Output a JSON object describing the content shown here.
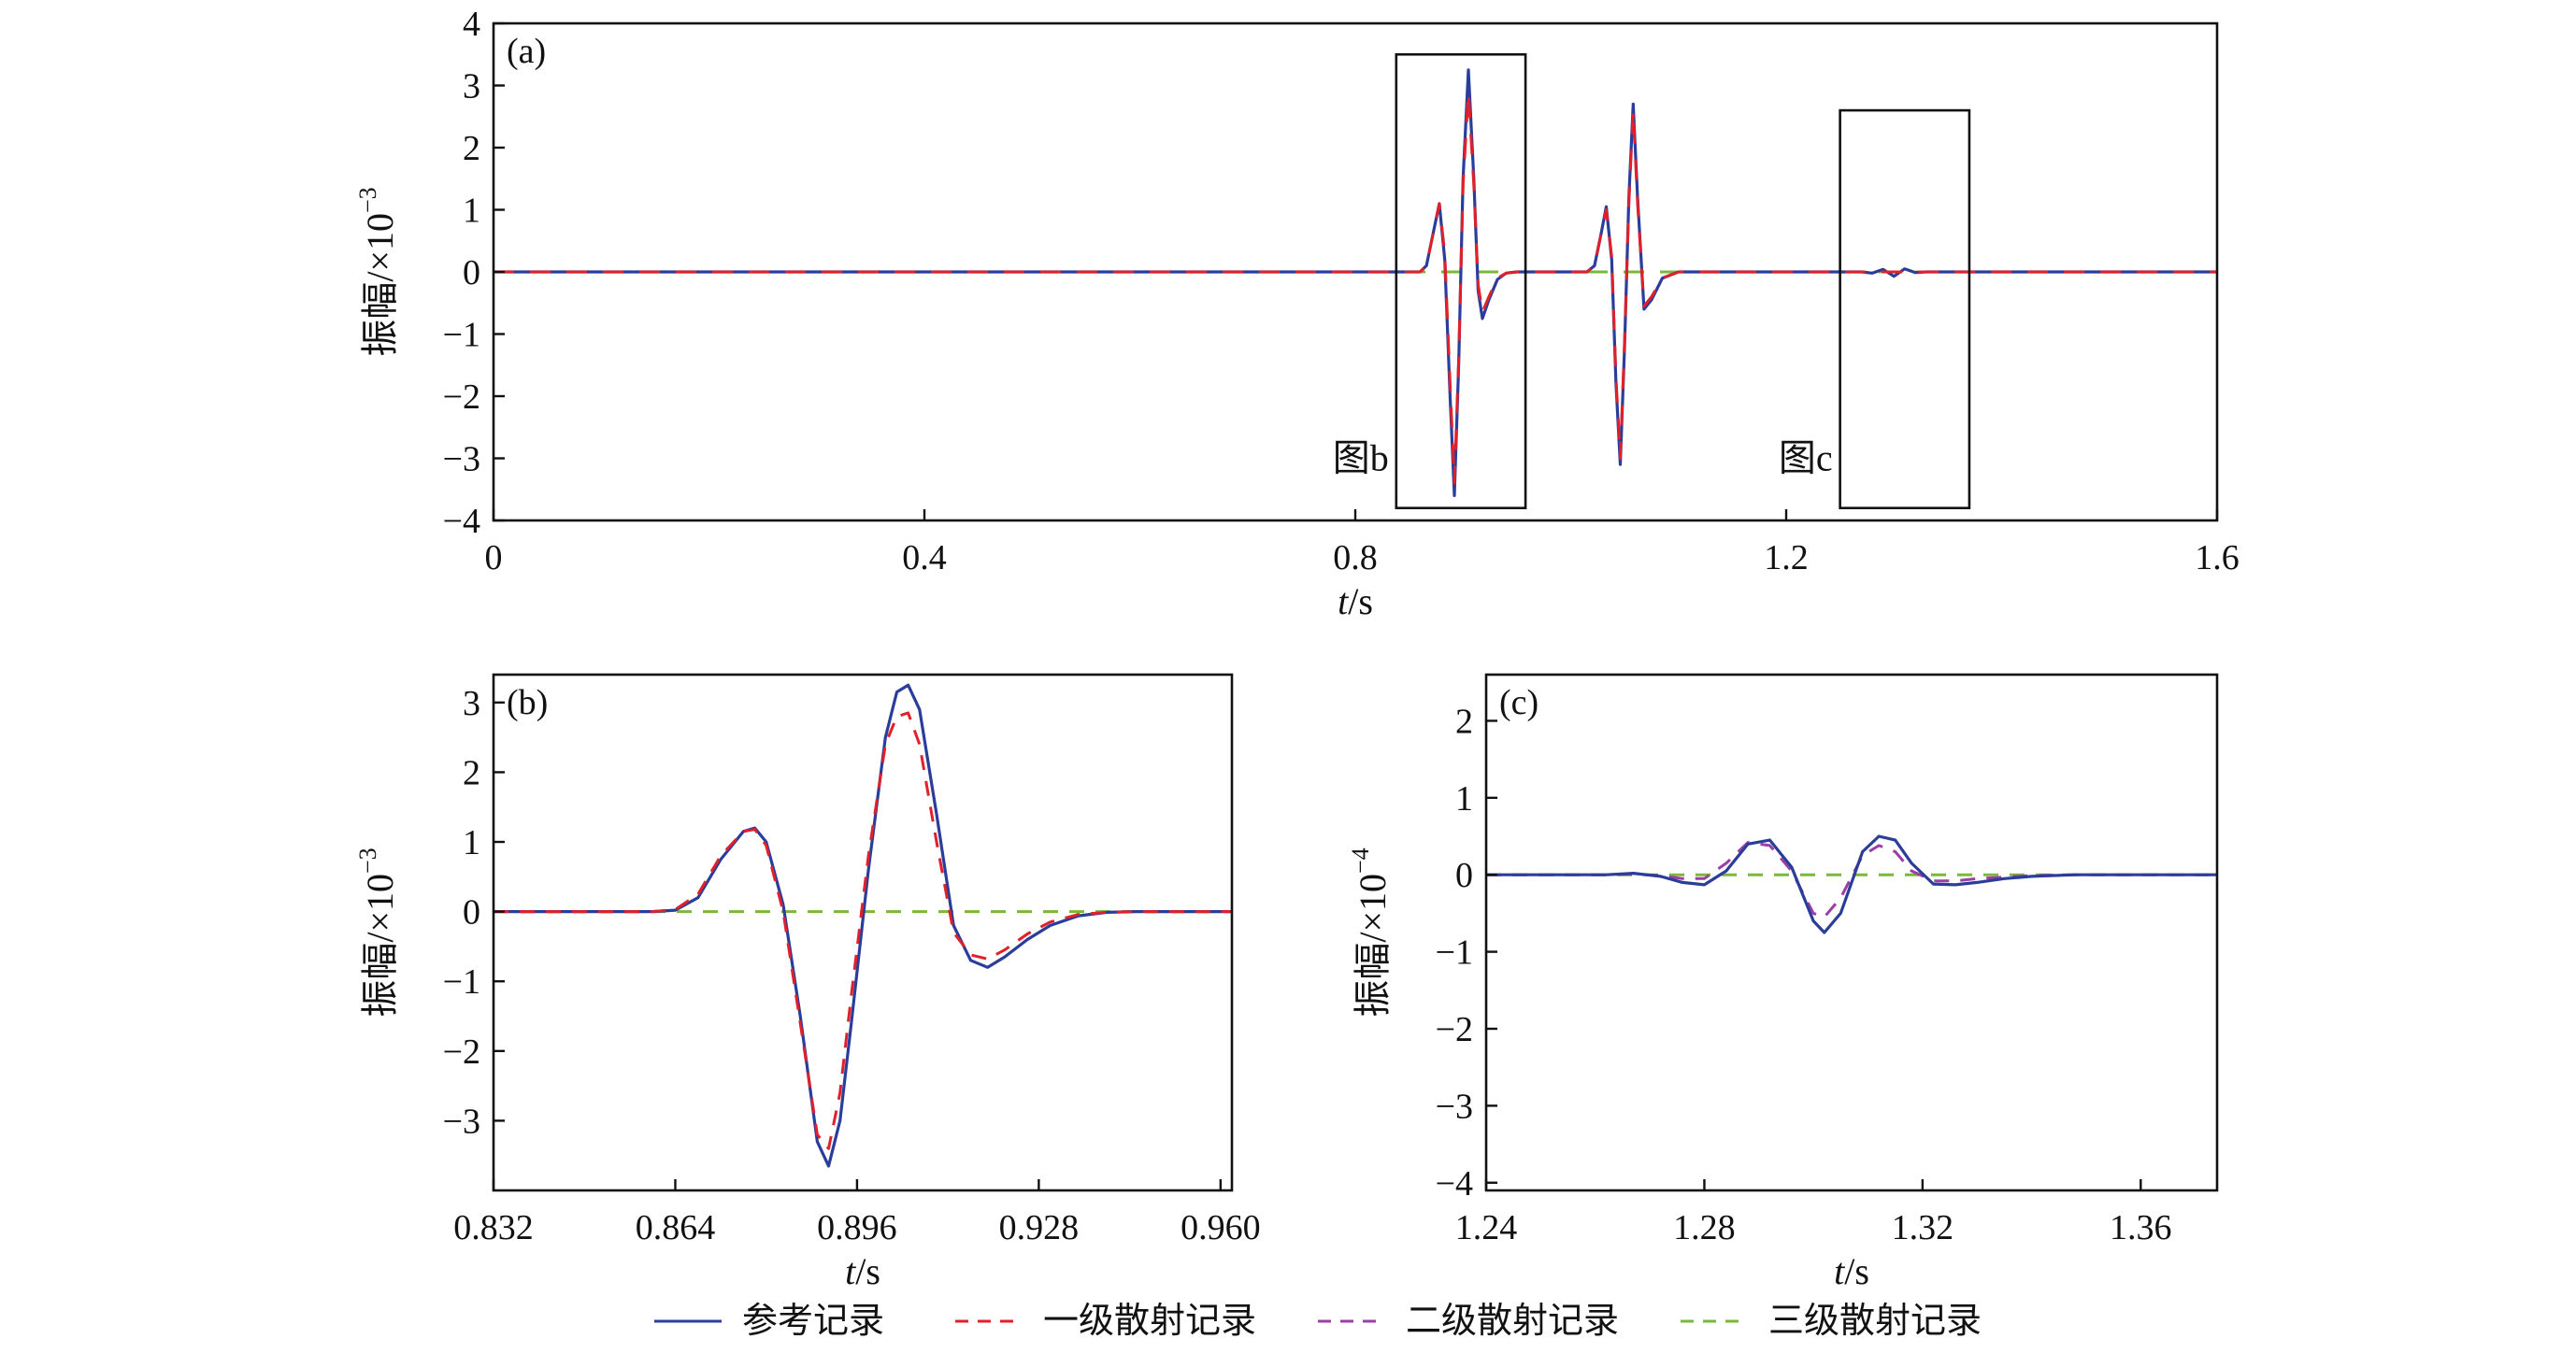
{
  "colors": {
    "reference": "#2a3d9a",
    "first_order": "#e0202a",
    "second_order": "#9b3fa6",
    "third_order": "#7ab83a",
    "axis": "#111111"
  },
  "legend": {
    "items": [
      {
        "label": "参考记录",
        "color": "#2a3d9a",
        "style": "solid"
      },
      {
        "label": "一级散射记录",
        "color": "#e0202a",
        "style": "dashed"
      },
      {
        "label": "二级散射记录",
        "color": "#9b3fa6",
        "style": "dashed"
      },
      {
        "label": "三级散射记录",
        "color": "#7ab83a",
        "style": "dashed"
      }
    ]
  },
  "chart_data": [
    {
      "id": "a",
      "type": "line",
      "panel_label": "(a)",
      "xlabel_italic": "t",
      "xlabel_unit": "/s",
      "ylabel_text": "振幅/×10",
      "ylabel_exp": "−3",
      "xlim": [
        0,
        1.6
      ],
      "ylim": [
        -4,
        4
      ],
      "xticks": [
        0,
        0.4,
        0.8,
        1.2,
        1.6
      ],
      "xtick_labels": [
        "0",
        "0.4",
        "0.8",
        "1.2",
        "1.6"
      ],
      "yticks": [
        -4,
        -3,
        -2,
        -1,
        0,
        1,
        2,
        3,
        4
      ],
      "ytick_labels": [
        "−4",
        "−3",
        "−2",
        "−1",
        "0",
        "1",
        "2",
        "3",
        "4"
      ],
      "annotations": [
        {
          "text": "图b",
          "box_x": [
            0.838,
            0.958
          ],
          "box_y": [
            -3.8,
            3.5
          ]
        },
        {
          "text": "图c",
          "box_x": [
            1.25,
            1.37
          ],
          "box_y": [
            -3.8,
            2.6
          ]
        }
      ],
      "series": [
        {
          "name": "参考记录",
          "x": [
            0,
            0.86,
            0.866,
            0.872,
            0.878,
            0.883,
            0.888,
            0.892,
            0.896,
            0.9,
            0.905,
            0.91,
            0.914,
            0.918,
            0.924,
            0.932,
            0.94,
            0.95,
            1.015,
            1.022,
            1.028,
            1.033,
            1.038,
            1.042,
            1.046,
            1.05,
            1.054,
            1.058,
            1.062,
            1.068,
            1.075,
            1.085,
            1.1,
            1.27,
            1.28,
            1.29,
            1.3,
            1.31,
            1.32,
            1.33,
            1.34,
            1.6
          ],
          "y": [
            0,
            0,
            0.1,
            0.6,
            1.1,
            0.2,
            -2.0,
            -3.6,
            -1.5,
            1.5,
            3.25,
            1.5,
            -0.3,
            -0.75,
            -0.45,
            -0.12,
            -0.02,
            0,
            0,
            0.1,
            0.6,
            1.05,
            0.2,
            -1.8,
            -3.1,
            -1.2,
            1.2,
            2.7,
            1.2,
            -0.6,
            -0.45,
            -0.1,
            0,
            0,
            -0.02,
            0.04,
            -0.07,
            0.05,
            -0.01,
            0,
            0,
            0
          ]
        },
        {
          "name": "一级散射记录",
          "x": [
            0,
            0.86,
            0.866,
            0.872,
            0.878,
            0.883,
            0.888,
            0.892,
            0.896,
            0.9,
            0.905,
            0.91,
            0.914,
            0.918,
            0.924,
            0.932,
            0.94,
            0.95,
            1.015,
            1.022,
            1.028,
            1.033,
            1.038,
            1.042,
            1.046,
            1.05,
            1.054,
            1.058,
            1.062,
            1.068,
            1.075,
            1.085,
            1.1,
            1.27,
            1.28,
            1.29,
            1.3,
            1.31,
            1.32,
            1.33,
            1.34,
            1.6
          ],
          "y": [
            0,
            0,
            0.1,
            0.6,
            1.1,
            0.3,
            -1.8,
            -3.4,
            -1.4,
            1.4,
            2.9,
            1.4,
            -0.2,
            -0.65,
            -0.4,
            -0.1,
            -0.02,
            0,
            0,
            0.1,
            0.6,
            1.0,
            0.25,
            -1.7,
            -3.0,
            -1.1,
            1.1,
            2.6,
            1.1,
            -0.55,
            -0.4,
            -0.1,
            0,
            0,
            0,
            0,
            0,
            0,
            0,
            0,
            0,
            0
          ]
        },
        {
          "name": "三级散射记录",
          "x": [
            0,
            1.6
          ],
          "y": [
            0,
            0
          ]
        }
      ]
    },
    {
      "id": "b",
      "type": "line",
      "panel_label": "(b)",
      "xlabel_italic": "t",
      "xlabel_unit": "/s",
      "ylabel_text": "振幅/×10",
      "ylabel_exp": "−3",
      "xlim": [
        0.832,
        0.962
      ],
      "ylim": [
        -4,
        3.4
      ],
      "xticks": [
        0.832,
        0.864,
        0.896,
        0.928,
        0.96
      ],
      "xtick_labels": [
        "0.832",
        "0.864",
        "0.896",
        "0.928",
        "0.960"
      ],
      "yticks": [
        -3,
        -2,
        -1,
        0,
        1,
        2,
        3
      ],
      "ytick_labels": [
        "−3",
        "−2",
        "−1",
        "0",
        "1",
        "2",
        "3"
      ],
      "series": [
        {
          "name": "参考记录",
          "x": [
            0.832,
            0.86,
            0.864,
            0.868,
            0.872,
            0.876,
            0.878,
            0.88,
            0.883,
            0.886,
            0.889,
            0.891,
            0.893,
            0.895,
            0.898,
            0.901,
            0.903,
            0.905,
            0.907,
            0.91,
            0.913,
            0.916,
            0.919,
            0.922,
            0.926,
            0.93,
            0.935,
            0.94,
            0.945,
            0.962
          ],
          "y": [
            0,
            0,
            0.02,
            0.2,
            0.75,
            1.15,
            1.2,
            1.0,
            0.1,
            -1.5,
            -3.3,
            -3.65,
            -3.0,
            -1.6,
            0.6,
            2.5,
            3.15,
            3.25,
            2.9,
            1.4,
            -0.2,
            -0.7,
            -0.8,
            -0.65,
            -0.4,
            -0.2,
            -0.06,
            -0.01,
            0,
            0
          ]
        },
        {
          "name": "一级散射记录",
          "x": [
            0.832,
            0.86,
            0.864,
            0.868,
            0.872,
            0.876,
            0.878,
            0.88,
            0.883,
            0.886,
            0.889,
            0.891,
            0.893,
            0.895,
            0.898,
            0.901,
            0.903,
            0.905,
            0.907,
            0.91,
            0.913,
            0.916,
            0.919,
            0.922,
            0.926,
            0.93,
            0.935,
            0.94,
            0.945,
            0.962
          ],
          "y": [
            0,
            0,
            0.03,
            0.25,
            0.8,
            1.15,
            1.18,
            0.95,
            0.0,
            -1.6,
            -3.2,
            -3.4,
            -2.6,
            -1.2,
            0.8,
            2.4,
            2.8,
            2.85,
            2.4,
            1.0,
            -0.3,
            -0.62,
            -0.68,
            -0.55,
            -0.32,
            -0.15,
            -0.04,
            -0.01,
            0,
            0
          ]
        },
        {
          "name": "三级散射记录",
          "x": [
            0.832,
            0.962
          ],
          "y": [
            0,
            0
          ]
        }
      ]
    },
    {
      "id": "c",
      "type": "line",
      "panel_label": "(c)",
      "xlabel_italic": "t",
      "xlabel_unit": "/s",
      "ylabel_text": "振幅/×10",
      "ylabel_exp": "−4",
      "xlim": [
        1.24,
        1.374
      ],
      "ylim": [
        -4.1,
        2.6
      ],
      "xticks": [
        1.24,
        1.28,
        1.32,
        1.36
      ],
      "xtick_labels": [
        "1.24",
        "1.28",
        "1.32",
        "1.36"
      ],
      "yticks": [
        -4,
        -3,
        -2,
        -1,
        0,
        1,
        2
      ],
      "ytick_labels": [
        "−4",
        "−3",
        "−2",
        "−1",
        "0",
        "1",
        "2"
      ],
      "series": [
        {
          "name": "参考记录",
          "x": [
            1.24,
            1.262,
            1.267,
            1.272,
            1.276,
            1.28,
            1.284,
            1.288,
            1.292,
            1.296,
            1.3,
            1.302,
            1.305,
            1.309,
            1.312,
            1.315,
            1.318,
            1.322,
            1.326,
            1.33,
            1.335,
            1.34,
            1.348,
            1.374
          ],
          "y": [
            0,
            0,
            0.02,
            -0.02,
            -0.1,
            -0.13,
            0.05,
            0.4,
            0.45,
            0.1,
            -0.6,
            -0.75,
            -0.5,
            0.3,
            0.5,
            0.45,
            0.15,
            -0.12,
            -0.13,
            -0.1,
            -0.05,
            -0.02,
            0,
            0
          ]
        },
        {
          "name": "二级散射记录",
          "x": [
            1.24,
            1.262,
            1.267,
            1.272,
            1.276,
            1.28,
            1.284,
            1.288,
            1.292,
            1.296,
            1.3,
            1.302,
            1.305,
            1.309,
            1.312,
            1.315,
            1.318,
            1.322,
            1.326,
            1.33,
            1.335,
            1.34,
            1.348,
            1.374
          ],
          "y": [
            0,
            0,
            0.01,
            -0.01,
            -0.05,
            -0.05,
            0.15,
            0.42,
            0.38,
            0.05,
            -0.5,
            -0.55,
            -0.3,
            0.25,
            0.38,
            0.3,
            0.05,
            -0.08,
            -0.08,
            -0.05,
            -0.03,
            -0.01,
            0,
            0
          ]
        },
        {
          "name": "三级散射记录",
          "x": [
            1.24,
            1.374
          ],
          "y": [
            0,
            0
          ]
        }
      ]
    }
  ]
}
